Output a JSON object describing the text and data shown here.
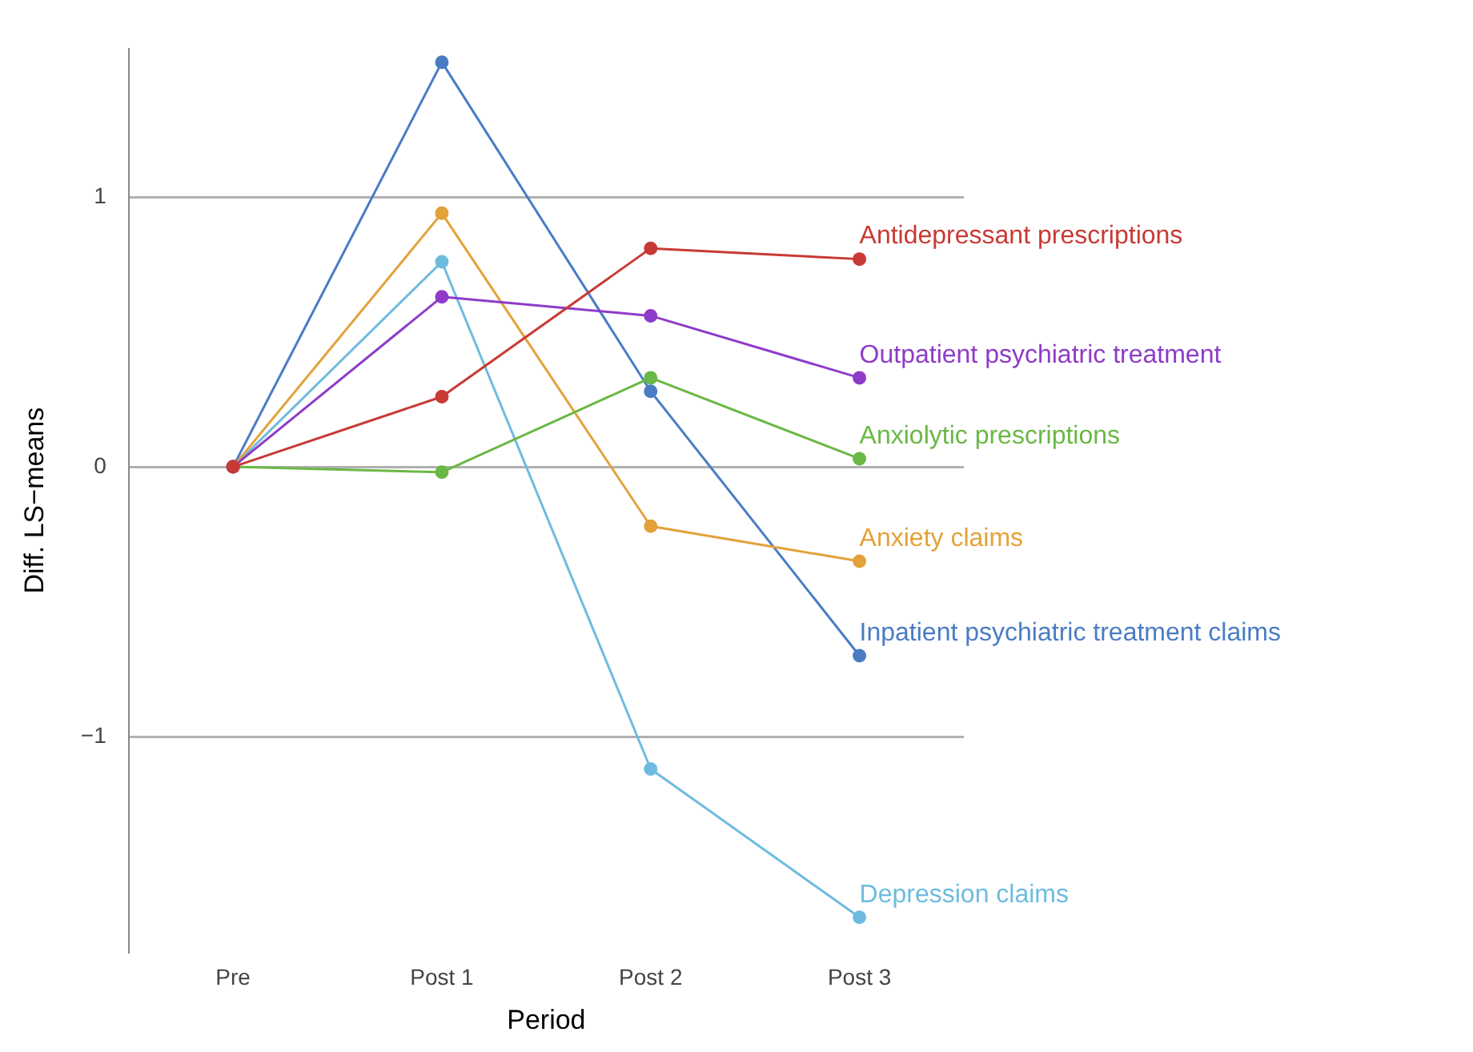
{
  "chart_data": {
    "type": "line",
    "xlabel": "Period",
    "ylabel": "Diff. LS−means",
    "categories": [
      "Pre",
      "Post 1",
      "Post 2",
      "Post 3"
    ],
    "series": [
      {
        "name": "Antidepressant prescriptions",
        "color": "#c83a35",
        "values": [
          0,
          0.26,
          0.81,
          0.77
        ]
      },
      {
        "name": "Outpatient psychiatric treatment",
        "color": "#8e3bc9",
        "values": [
          0,
          0.63,
          0.56,
          0.33
        ]
      },
      {
        "name": "Anxiolytic prescriptions",
        "color": "#6ab845",
        "values": [
          0,
          -0.02,
          0.33,
          0.03
        ]
      },
      {
        "name": "Anxiety claims",
        "color": "#e3a23a",
        "values": [
          0,
          0.94,
          -0.22,
          -0.35
        ]
      },
      {
        "name": "Inpatient psychiatric treatment claims",
        "color": "#4a7cc4",
        "values": [
          0,
          1.5,
          0.28,
          -0.7
        ]
      },
      {
        "name": "Depression claims",
        "color": "#6fbbe0",
        "values": [
          0,
          0.76,
          -1.12,
          -1.67
        ]
      }
    ],
    "ylim": [
      -1.8,
      1.55
    ],
    "yticks": [
      {
        "value": -1,
        "label": "−1"
      },
      0,
      1
    ],
    "grid": "y",
    "marker": "circle",
    "legend": false
  }
}
